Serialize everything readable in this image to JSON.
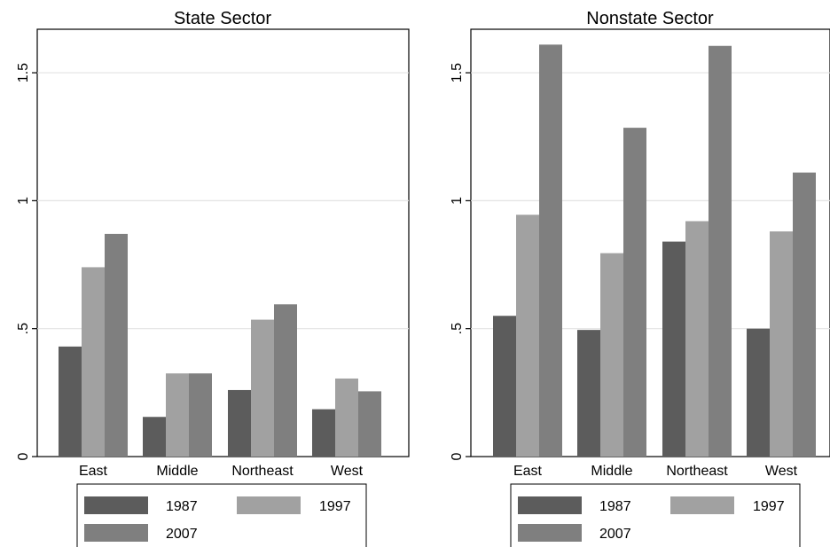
{
  "chart_data": [
    {
      "type": "bar",
      "title": "State Sector",
      "categories": [
        "East",
        "Middle",
        "Northeast",
        "West"
      ],
      "series": [
        {
          "name": "1987",
          "values": [
            0.43,
            0.155,
            0.26,
            0.185
          ]
        },
        {
          "name": "1997",
          "values": [
            0.74,
            0.325,
            0.535,
            0.305
          ]
        },
        {
          "name": "2007",
          "values": [
            0.87,
            0.325,
            0.595,
            0.255
          ]
        }
      ],
      "ylim": [
        0,
        1.67
      ],
      "yticks": [
        0,
        0.5,
        1,
        1.5
      ],
      "ytick_labels": [
        "0",
        ".5",
        "1",
        "1.5"
      ],
      "colors": [
        "#5c5c5c",
        "#a1a1a1",
        "#7f7f7f"
      ],
      "grid": true,
      "legend_placement": "bottom"
    },
    {
      "type": "bar",
      "title": "Nonstate Sector",
      "categories": [
        "East",
        "Middle",
        "Northeast",
        "West"
      ],
      "series": [
        {
          "name": "1987",
          "values": [
            0.55,
            0.495,
            0.84,
            0.5
          ]
        },
        {
          "name": "1997",
          "values": [
            0.945,
            0.795,
            0.92,
            0.88
          ]
        },
        {
          "name": "2007",
          "values": [
            1.61,
            1.285,
            1.605,
            1.11
          ]
        }
      ],
      "ylim": [
        0,
        1.67
      ],
      "yticks": [
        0,
        0.5,
        1,
        1.5
      ],
      "ytick_labels": [
        "0",
        ".5",
        "1",
        "1.5"
      ],
      "colors": [
        "#5c5c5c",
        "#a1a1a1",
        "#7f7f7f"
      ],
      "grid": true,
      "legend_placement": "bottom"
    }
  ]
}
